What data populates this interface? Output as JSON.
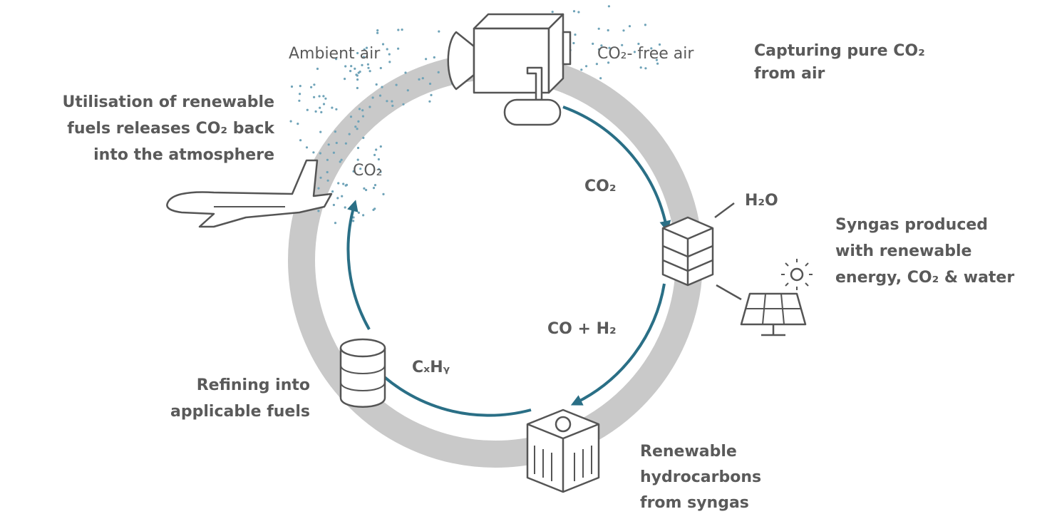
{
  "labels": [
    "Ambient air",
    "CO₂- free air",
    "CO₂",
    "CO₂",
    "H₂O",
    "CO + H₂",
    "CₓHᵧ"
  ],
  "captions": [
    [
      "Capturing pure CO₂",
      "from air"
    ],
    [
      "Utilisation of renewable",
      "fuels releases CO₂ back",
      "into the atmosphere"
    ],
    [
      "Syngas produced",
      "with renewable",
      "energy, CO₂ & water"
    ],
    [
      "Refining into",
      "applicable fuels"
    ],
    [
      "Renewable",
      "hydrocarbons",
      "from syngas"
    ]
  ]
}
